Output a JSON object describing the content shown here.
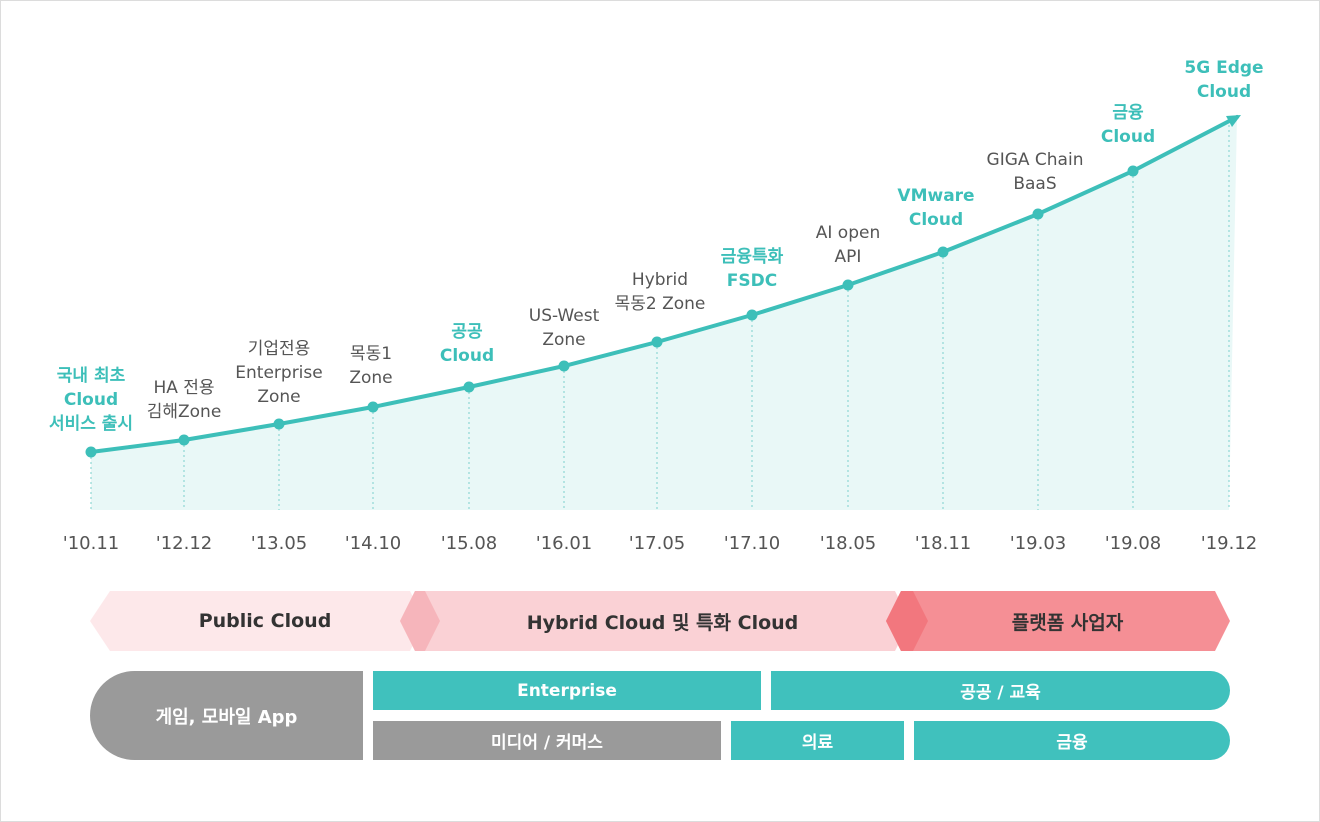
{
  "chart_data": {
    "type": "line",
    "x": [
      "'10.11",
      "'12.12",
      "'13.05",
      "'14.10",
      "'15.08",
      "'16.01",
      "'17.05",
      "'17.10",
      "'18.05",
      "'18.11",
      "'19.03",
      "'19.08",
      "'19.12"
    ],
    "milestones": [
      {
        "label": "국내 최초\nCloud\n서비스 출시",
        "highlight": true
      },
      {
        "label": "HA 전용\n김해Zone",
        "highlight": false
      },
      {
        "label": "기업전용\nEnterprise\nZone",
        "highlight": false
      },
      {
        "label": "목동1\nZone",
        "highlight": false
      },
      {
        "label": "공공\nCloud",
        "highlight": true
      },
      {
        "label": "US-West\nZone",
        "highlight": false
      },
      {
        "label": "Hybrid\n목동2 Zone",
        "highlight": false
      },
      {
        "label": "금융특화\nFSDC",
        "highlight": true
      },
      {
        "label": "AI open\nAPI",
        "highlight": false
      },
      {
        "label": "VMware\nCloud",
        "highlight": true
      },
      {
        "label": "GIGA Chain\nBaaS",
        "highlight": false
      },
      {
        "label": "금융\nCloud",
        "highlight": true
      },
      {
        "label": "5G Edge\nCloud",
        "highlight": true
      }
    ],
    "colors": {
      "line": "#3dbfb9",
      "fill": "#e9f8f7",
      "highlight": "#3dbfb9",
      "text": "#555555"
    }
  },
  "phases": [
    {
      "label": "Public Cloud",
      "color": "#fde8ea"
    },
    {
      "label": "Hybrid Cloud 및 특화 Cloud",
      "color": "#fad1d5"
    },
    {
      "label": "플랫폼 사업자",
      "color": "#f58f95"
    }
  ],
  "segments": {
    "game": "게임, 모바일 App",
    "enterprise": "Enterprise",
    "public_edu": "공공 / 교육",
    "media": "미디어 / 커머스",
    "medical": "의료",
    "finance": "금융"
  }
}
